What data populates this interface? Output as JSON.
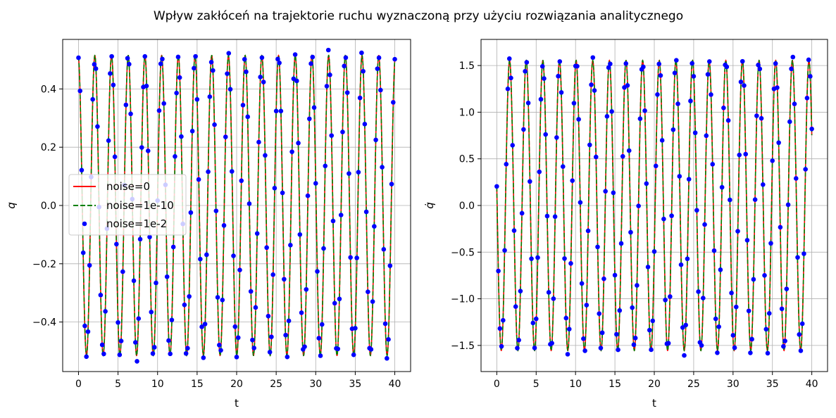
{
  "title": "Wpływ zakłóceń na trajektorie ruchu wyznaczoną przy użyciu rozwiązania analitycznego",
  "colors": {
    "noise0": "#ff0000",
    "noise1e10": "#008000",
    "noise1e2": "#0000ff",
    "grid": "#b0b0b0"
  },
  "legend": [
    "noise=0",
    "noise=1e-10",
    "noise=1e-2"
  ],
  "chart_data": [
    {
      "type": "line",
      "xlabel": "t",
      "ylabel": "q",
      "xlim": [
        -2,
        42
      ],
      "ylim": [
        -0.57,
        0.57
      ],
      "xticks": [
        0,
        5,
        10,
        15,
        20,
        25,
        30,
        35,
        40
      ],
      "xtick_labels": [
        "0",
        "5",
        "10",
        "15",
        "20",
        "25",
        "30",
        "35",
        "40"
      ],
      "yticks": [
        -0.4,
        -0.2,
        0.0,
        0.2,
        0.4
      ],
      "ytick_labels": [
        "−0.4",
        "−0.2",
        "0.0",
        "0.2",
        "0.4"
      ],
      "grid": true,
      "legend_position": "center-left",
      "model": {
        "amplitude": 0.515,
        "omega": 2.975,
        "phase": 0.135,
        "t_start": 0,
        "t_end": 40,
        "dt": 0.2
      },
      "series": [
        {
          "name": "noise=0",
          "style": "solid",
          "noise": 0
        },
        {
          "name": "noise=1e-10",
          "style": "dashed",
          "noise": 1e-10
        },
        {
          "name": "noise=1e-2",
          "style": "markers",
          "noise": 0.01
        }
      ]
    },
    {
      "type": "line",
      "xlabel": "t",
      "ylabel": "q̇",
      "xlim": [
        -2,
        42
      ],
      "ylim": [
        -1.78,
        1.78
      ],
      "xticks": [
        0,
        5,
        10,
        15,
        20,
        25,
        30,
        35,
        40
      ],
      "xtick_labels": [
        "0",
        "5",
        "10",
        "15",
        "20",
        "25",
        "30",
        "35",
        "40"
      ],
      "yticks": [
        -1.5,
        -1.0,
        -0.5,
        0.0,
        0.5,
        1.0,
        1.5
      ],
      "ytick_labels": [
        "−1.5",
        "−1.0",
        "−0.5",
        "0.0",
        "0.5",
        "1.0",
        "1.5"
      ],
      "grid": true,
      "model": {
        "amplitude": 1.555,
        "omega": 2.975,
        "phase": 0.135,
        "t_start": 0,
        "t_end": 40,
        "dt": 0.2
      },
      "series": [
        {
          "name": "noise=0",
          "style": "solid",
          "noise": 0
        },
        {
          "name": "noise=1e-10",
          "style": "dashed",
          "noise": 1e-10
        },
        {
          "name": "noise=1e-2",
          "style": "markers",
          "noise": 0.01
        }
      ]
    }
  ]
}
